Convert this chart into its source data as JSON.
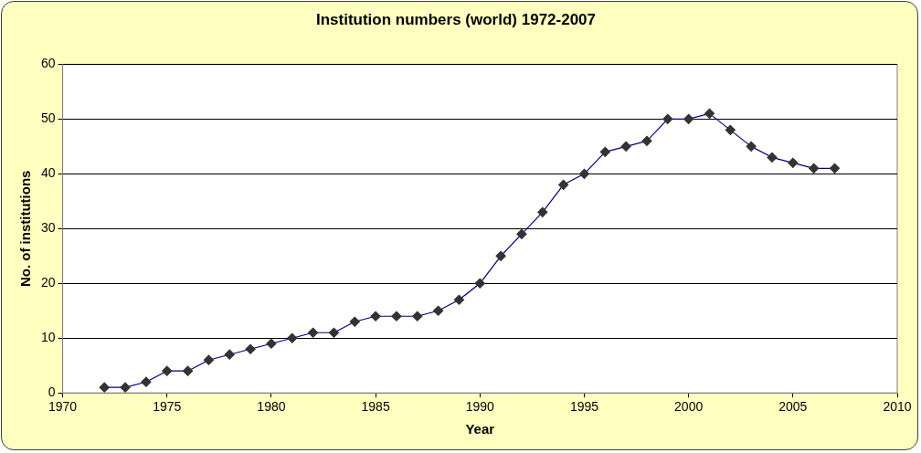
{
  "chart_data": {
    "type": "line",
    "title": "Institution numbers (world) 1972-2007",
    "xlabel": "Year",
    "ylabel": "No. of institutions",
    "x": [
      1972,
      1973,
      1974,
      1975,
      1976,
      1977,
      1978,
      1979,
      1980,
      1981,
      1982,
      1983,
      1984,
      1985,
      1986,
      1987,
      1988,
      1989,
      1990,
      1991,
      1992,
      1993,
      1994,
      1995,
      1996,
      1997,
      1998,
      1999,
      2000,
      2001,
      2002,
      2003,
      2004,
      2005,
      2006,
      2007
    ],
    "series": [
      {
        "color": "#000080",
        "values": [
          1,
          1,
          2,
          4,
          4,
          6,
          7,
          8,
          9,
          10,
          11,
          11,
          13,
          14,
          14,
          14,
          15,
          17,
          20,
          25,
          29,
          33,
          38,
          40,
          44,
          45,
          46,
          50,
          50,
          51,
          48,
          45,
          43,
          42,
          41,
          41
        ]
      }
    ],
    "xlim": [
      1970,
      2010
    ],
    "xticks": [
      1970,
      1975,
      1980,
      1985,
      1990,
      1995,
      2000,
      2005,
      2010
    ],
    "ylim": [
      0,
      60
    ],
    "yticks": [
      0,
      10,
      20,
      30,
      40,
      50,
      60
    ],
    "grid": "y",
    "legend": false,
    "marker": "diamond",
    "line_style": "solid"
  }
}
